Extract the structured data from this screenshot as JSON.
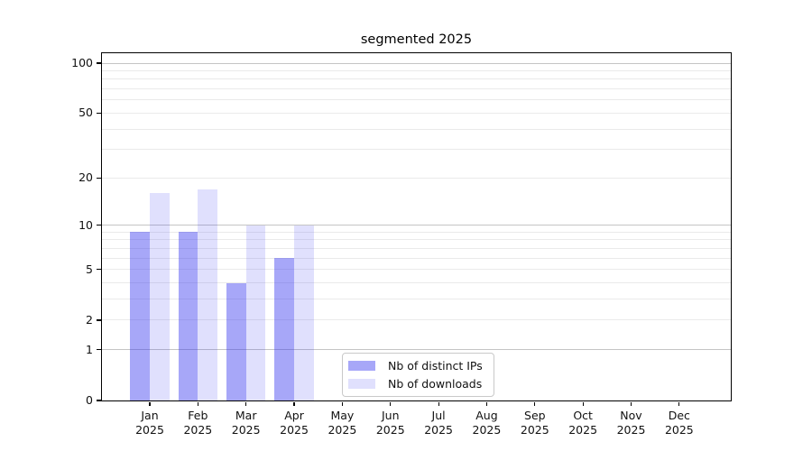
{
  "chart_data": {
    "type": "bar",
    "title": "segmented 2025",
    "y_scale": "log10(value+1)",
    "ylim": [
      0,
      100
    ],
    "y_ticks": [
      100,
      50,
      20,
      10,
      5,
      2,
      1,
      0
    ],
    "gridlines": {
      "major": [
        100,
        10,
        1
      ],
      "minor": [
        90,
        80,
        70,
        60,
        50,
        40,
        30,
        20,
        9,
        8,
        7,
        6,
        5,
        4,
        3,
        2
      ]
    },
    "categories": [
      {
        "month": "Jan",
        "year": "2025"
      },
      {
        "month": "Feb",
        "year": "2025"
      },
      {
        "month": "Mar",
        "year": "2025"
      },
      {
        "month": "Apr",
        "year": "2025"
      },
      {
        "month": "May",
        "year": "2025"
      },
      {
        "month": "Jun",
        "year": "2025"
      },
      {
        "month": "Jul",
        "year": "2025"
      },
      {
        "month": "Aug",
        "year": "2025"
      },
      {
        "month": "Sep",
        "year": "2025"
      },
      {
        "month": "Oct",
        "year": "2025"
      },
      {
        "month": "Nov",
        "year": "2025"
      },
      {
        "month": "Dec",
        "year": "2025"
      }
    ],
    "series": [
      {
        "name": "Nb of distinct IPs",
        "color": "rgba(60,60,240,0.45)",
        "values": [
          9,
          9,
          4,
          6,
          0,
          0,
          0,
          0,
          0,
          0,
          0,
          0
        ]
      },
      {
        "name": "Nb of downloads",
        "color": "rgba(60,60,240,0.16)",
        "values": [
          16,
          17,
          10,
          10,
          0,
          0,
          0,
          0,
          0,
          0,
          0,
          0
        ]
      }
    ],
    "legend": {
      "position": "bottom-center-inside",
      "items": [
        "Nb of distinct IPs",
        "Nb of downloads"
      ]
    },
    "colors": {
      "gridline_major": "#c4c4c4",
      "gridline_minor": "#eaeaea",
      "spine": "#000000",
      "text": "#111111",
      "background": "#ffffff"
    }
  }
}
